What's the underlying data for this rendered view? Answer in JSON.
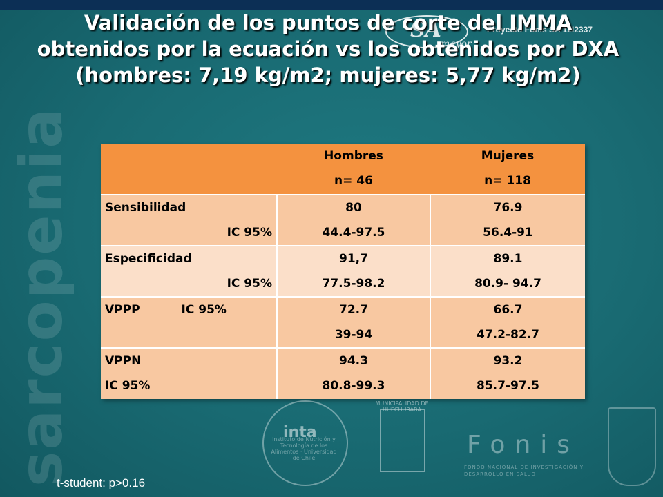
{
  "slide": {
    "title_lines": [
      "Validación de los puntos de corte del IMMA",
      "obtenidos por la ecuación vs los obtenidos por DXA",
      "(hombres: 7,19 kg/m2; mujeres: 5,77 kg/m2)"
    ],
    "watermark": "sarcopenia",
    "badge": {
      "main": "SA",
      "sub": "mayor"
    },
    "project_ref": "Proyecto Fonis SA 12I2337",
    "footnote": "t-student: p>0.16",
    "colors": {
      "background": "#196a72",
      "header_row": "#f4923f",
      "row_dark": "#f8c8a1",
      "row_light": "#fbdfc9"
    }
  },
  "table": {
    "headers": [
      {
        "name": "Hombres",
        "n": "n= 46"
      },
      {
        "name": "Mujeres",
        "n": "n= 118"
      }
    ],
    "rows": [
      {
        "label": "Sensibilidad",
        "ci_label": "IC 95%",
        "hombres": "80",
        "hombres_ci": "44.4-97.5",
        "mujeres": "76.9",
        "mujeres_ci": "56.4-91"
      },
      {
        "label": "Especificidad",
        "ci_label": "IC 95%",
        "hombres": "91,7",
        "hombres_ci": "77.5-98.2",
        "mujeres": "89.1",
        "mujeres_ci": "80.9- 94.7"
      },
      {
        "label": "VPPP",
        "ci_label": "IC 95%",
        "hombres": "72.7",
        "hombres_ci": "39-94",
        "mujeres": "66.7",
        "mujeres_ci": "47.2-82.7"
      },
      {
        "label": "VPPN",
        "ci_label": "IC 95%",
        "hombres": "94.3",
        "hombres_ci": "80.8-99.3",
        "mujeres": "93.2",
        "mujeres_ci": "85.7-97.5"
      }
    ]
  },
  "logos": {
    "inta": "inta",
    "inta_ring": "Instituto de Nutrición y Tecnología de los Alimentos · Universidad de Chile",
    "municipality": "MUNICIPALIDAD DE HUECHURABA",
    "fonis": "Fonis",
    "fonis_sub": "FONDO NACIONAL DE INVESTIGACIÓN Y DESARROLLO EN SALUD"
  }
}
